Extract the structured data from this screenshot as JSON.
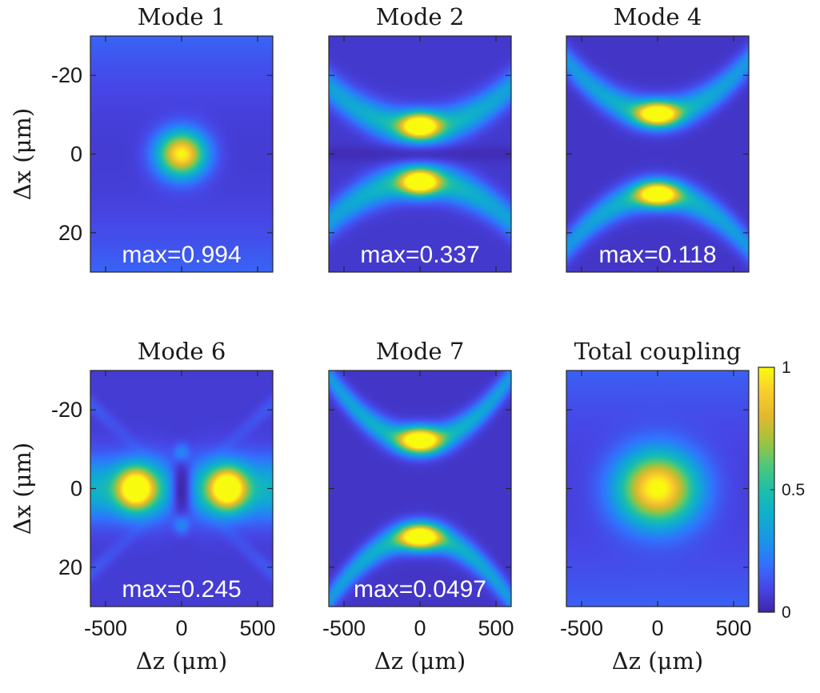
{
  "chart_data": [
    {
      "type": "heatmap",
      "title": "Mode 1",
      "annotation": "max=0.994",
      "xlabel": "",
      "ylabel": "Δx (μm)",
      "xticks": [],
      "yticks": [
        "-20",
        "0",
        "20"
      ],
      "xlim": [
        -600,
        600
      ],
      "ylim": [
        -30,
        30
      ],
      "pattern": "single-lobe",
      "max_value": 0.994
    },
    {
      "type": "heatmap",
      "title": "Mode 2",
      "annotation": "max=0.337",
      "xlabel": "",
      "ylabel": "",
      "xticks": [],
      "yticks": [],
      "xlim": [
        -600,
        600
      ],
      "ylim": [
        -30,
        30
      ],
      "pattern": "two-lobes-vertical",
      "max_value": 0.337
    },
    {
      "type": "heatmap",
      "title": "Mode 4",
      "annotation": "max=0.118",
      "xlabel": "",
      "ylabel": "",
      "xticks": [],
      "yticks": [],
      "xlim": [
        -600,
        600
      ],
      "ylim": [
        -30,
        30
      ],
      "pattern": "two-lobes-vertical-wide",
      "max_value": 0.118
    },
    {
      "type": "heatmap",
      "title": "Mode 6",
      "annotation": "max=0.245",
      "xlabel": "Δz (μm)",
      "ylabel": "Δx (μm)",
      "xticks": [
        "-500",
        "0",
        "500"
      ],
      "yticks": [
        "-20",
        "0",
        "20"
      ],
      "xlim": [
        -600,
        600
      ],
      "ylim": [
        -30,
        30
      ],
      "pattern": "two-lobes-horizontal",
      "max_value": 0.245
    },
    {
      "type": "heatmap",
      "title": "Mode 7",
      "annotation": "max=0.0497",
      "xlabel": "Δz (μm)",
      "ylabel": "",
      "xticks": [
        "-500",
        "0",
        "500"
      ],
      "yticks": [],
      "xlim": [
        -600,
        600
      ],
      "ylim": [
        -30,
        30
      ],
      "pattern": "two-lobes-vertical-far",
      "max_value": 0.0497
    },
    {
      "type": "heatmap",
      "title": "Total coupling",
      "annotation": "",
      "xlabel": "Δz (μm)",
      "ylabel": "",
      "xticks": [
        "-500",
        "0",
        "500"
      ],
      "yticks": [],
      "xlim": [
        -600,
        600
      ],
      "ylim": [
        -30,
        30
      ],
      "pattern": "single-lobe-large"
    }
  ],
  "colorbar": {
    "colormap": "parula",
    "range": [
      0,
      1
    ],
    "ticks": [
      "1",
      "0.5",
      "0"
    ]
  },
  "colors": {
    "low": "#3e26a8",
    "high": "#f9fb0e",
    "annotation_text": "#ffffff"
  }
}
